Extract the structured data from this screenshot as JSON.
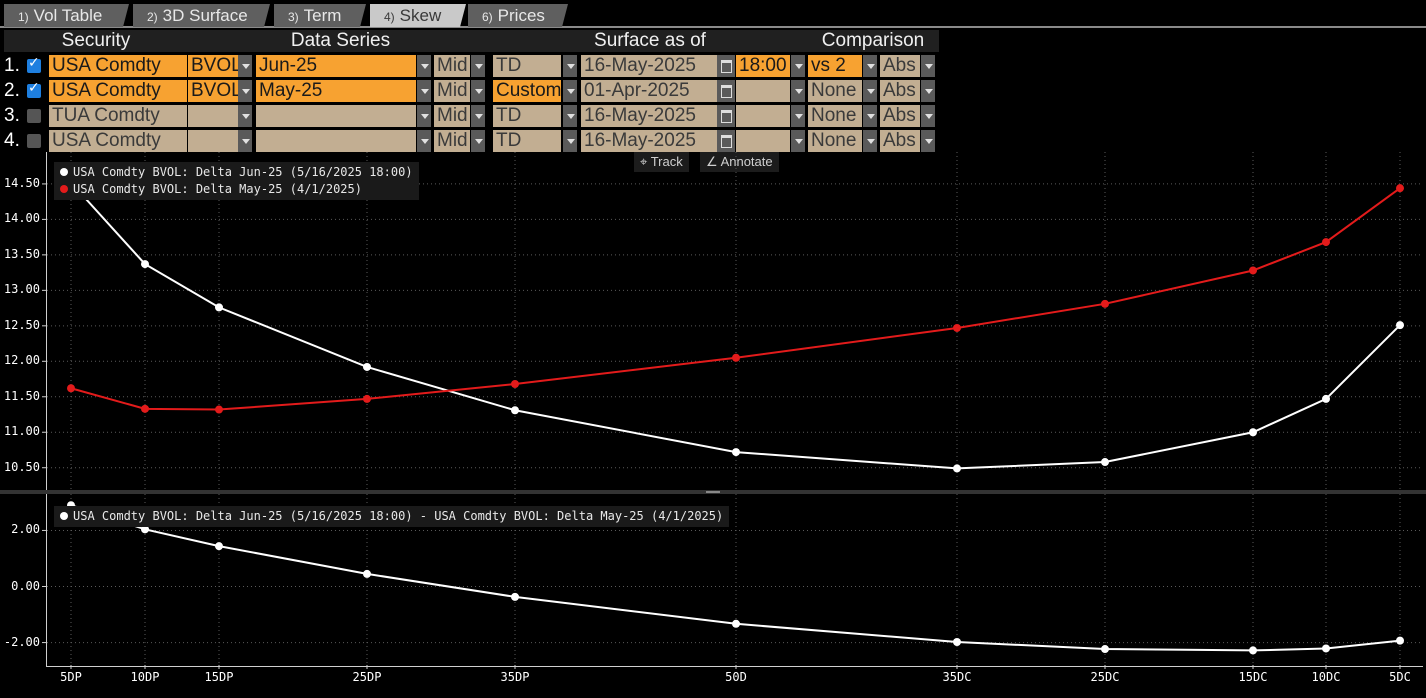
{
  "tabs": [
    {
      "num": "1)",
      "label": "Vol Table"
    },
    {
      "num": "2)",
      "label": "3D Surface"
    },
    {
      "num": "3)",
      "label": "Term"
    },
    {
      "num": "4)",
      "label": "Skew"
    },
    {
      "num": "6)",
      "label": "Prices"
    }
  ],
  "active_tab": "Skew",
  "headers": {
    "security": "Security",
    "data_series": "Data Series",
    "surface": "Surface as of",
    "comparison": "Comparison"
  },
  "rows": [
    {
      "n": "1.",
      "checked": true,
      "security": "USA Comdty",
      "source": "BVOL",
      "series": "Jun-25",
      "side": "Mid",
      "mode": "TD",
      "date": "16-May-2025",
      "time": "18:00",
      "cmp": "vs 2",
      "abs": "Abs"
    },
    {
      "n": "2.",
      "checked": true,
      "security": "USA Comdty",
      "source": "BVOL",
      "series": "May-25",
      "side": "Mid",
      "mode": "Custom",
      "date": "01-Apr-2025",
      "time": "",
      "cmp": "None",
      "abs": "Abs"
    },
    {
      "n": "3.",
      "checked": false,
      "security": "TUA Comdty",
      "source": "",
      "series": "",
      "side": "Mid",
      "mode": "TD",
      "date": "16-May-2025",
      "time": "",
      "cmp": "None",
      "abs": "Abs"
    },
    {
      "n": "4.",
      "checked": false,
      "security": "USA Comdty",
      "source": "",
      "series": "",
      "side": "Mid",
      "mode": "TD",
      "date": "16-May-2025",
      "time": "",
      "cmp": "None",
      "abs": "Abs"
    }
  ],
  "tools": {
    "track": "Track",
    "annotate": "Annotate"
  },
  "colors": {
    "series1": "#ffffff",
    "series2": "#e31b1b",
    "accent": "#f7a231"
  },
  "chart_data": [
    {
      "type": "line",
      "categories": [
        "5DP",
        "10DP",
        "15DP",
        "25DP",
        "35DP",
        "50D",
        "35DC",
        "25DC",
        "15DC",
        "10DC",
        "5DC"
      ],
      "series": [
        {
          "name": "USA Comdty BVOL: Delta Jun-25 (5/16/2025 18:00)",
          "color": "#ffffff",
          "values": [
            14.52,
            13.37,
            12.76,
            11.92,
            11.31,
            10.72,
            10.49,
            10.58,
            11.0,
            11.47,
            12.51
          ]
        },
        {
          "name": "USA Comdty BVOL: Delta May-25 (4/1/2025)",
          "color": "#e31b1b",
          "values": [
            11.62,
            11.33,
            11.32,
            11.47,
            11.68,
            12.05,
            12.47,
            12.81,
            13.28,
            13.68,
            14.44
          ]
        }
      ],
      "yticks": [
        "14.50",
        "14.00",
        "13.50",
        "13.00",
        "12.50",
        "12.00",
        "11.50",
        "11.00",
        "10.50"
      ],
      "ylim": [
        10.2,
        14.95
      ],
      "grid": true,
      "legend": "top-left"
    },
    {
      "type": "line",
      "categories": [
        "5DP",
        "10DP",
        "15DP",
        "25DP",
        "35DP",
        "50D",
        "35DC",
        "25DC",
        "15DC",
        "10DC",
        "5DC"
      ],
      "series": [
        {
          "name": "USA Comdty BVOL: Delta Jun-25 (5/16/2025 18:00) - USA Comdty BVOL: Delta May-25 (4/1/2025)",
          "color": "#ffffff",
          "values": [
            2.9,
            2.04,
            1.44,
            0.45,
            -0.37,
            -1.33,
            -1.98,
            -2.23,
            -2.28,
            -2.21,
            -1.93
          ]
        }
      ],
      "yticks": [
        "2.00",
        "0.00",
        "-2.00"
      ],
      "ylim": [
        -2.8,
        3.3
      ],
      "grid": true,
      "legend": "top-left"
    }
  ]
}
